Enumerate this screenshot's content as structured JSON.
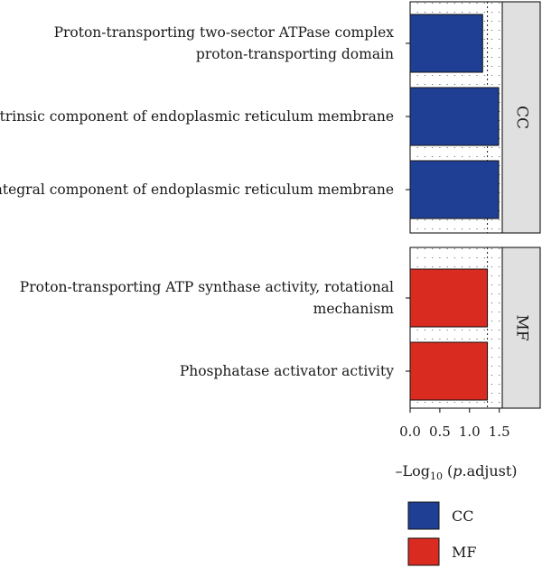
{
  "chart_data": {
    "type": "bar",
    "orientation": "horizontal",
    "facets": [
      {
        "name": "CC",
        "bars": [
          {
            "label_lines": [
              "Proton-transporting two-sector ATPase complex",
              "proton-transporting domain"
            ],
            "value": 1.22
          },
          {
            "label_lines": [
              "Intrinsic component of endoplasmic reticulum membrane"
            ],
            "value": 1.49
          },
          {
            "label_lines": [
              "Integral component of endoplasmic reticulum membrane"
            ],
            "value": 1.49
          }
        ]
      },
      {
        "name": "MF",
        "bars": [
          {
            "label_lines": [
              "Proton-transporting ATP synthase activity, rotational",
              "mechanism"
            ],
            "value": 1.3
          },
          {
            "label_lines": [
              "Phosphatase activator activity"
            ],
            "value": 1.3
          }
        ]
      }
    ],
    "xlim": [
      0,
      1.55
    ],
    "xticks": [
      0,
      0.5,
      1,
      1.5
    ],
    "xtick_labels": [
      "0.0",
      "0.5",
      "1.0",
      "1.5"
    ],
    "xlabel": {
      "prefix": "–Log",
      "subscript": "10",
      "open": " (",
      "italic": "p",
      "suffix": ".adjust)"
    },
    "threshold_line": 1.3,
    "legend": {
      "position": "bottom",
      "entries": [
        {
          "label": "CC",
          "color": "#1f3f94"
        },
        {
          "label": "MF",
          "color": "#d92b1f"
        }
      ]
    },
    "colors": {
      "CC": "#1f3f94",
      "MF": "#d92b1f",
      "strip": "#e0e0e0"
    }
  }
}
